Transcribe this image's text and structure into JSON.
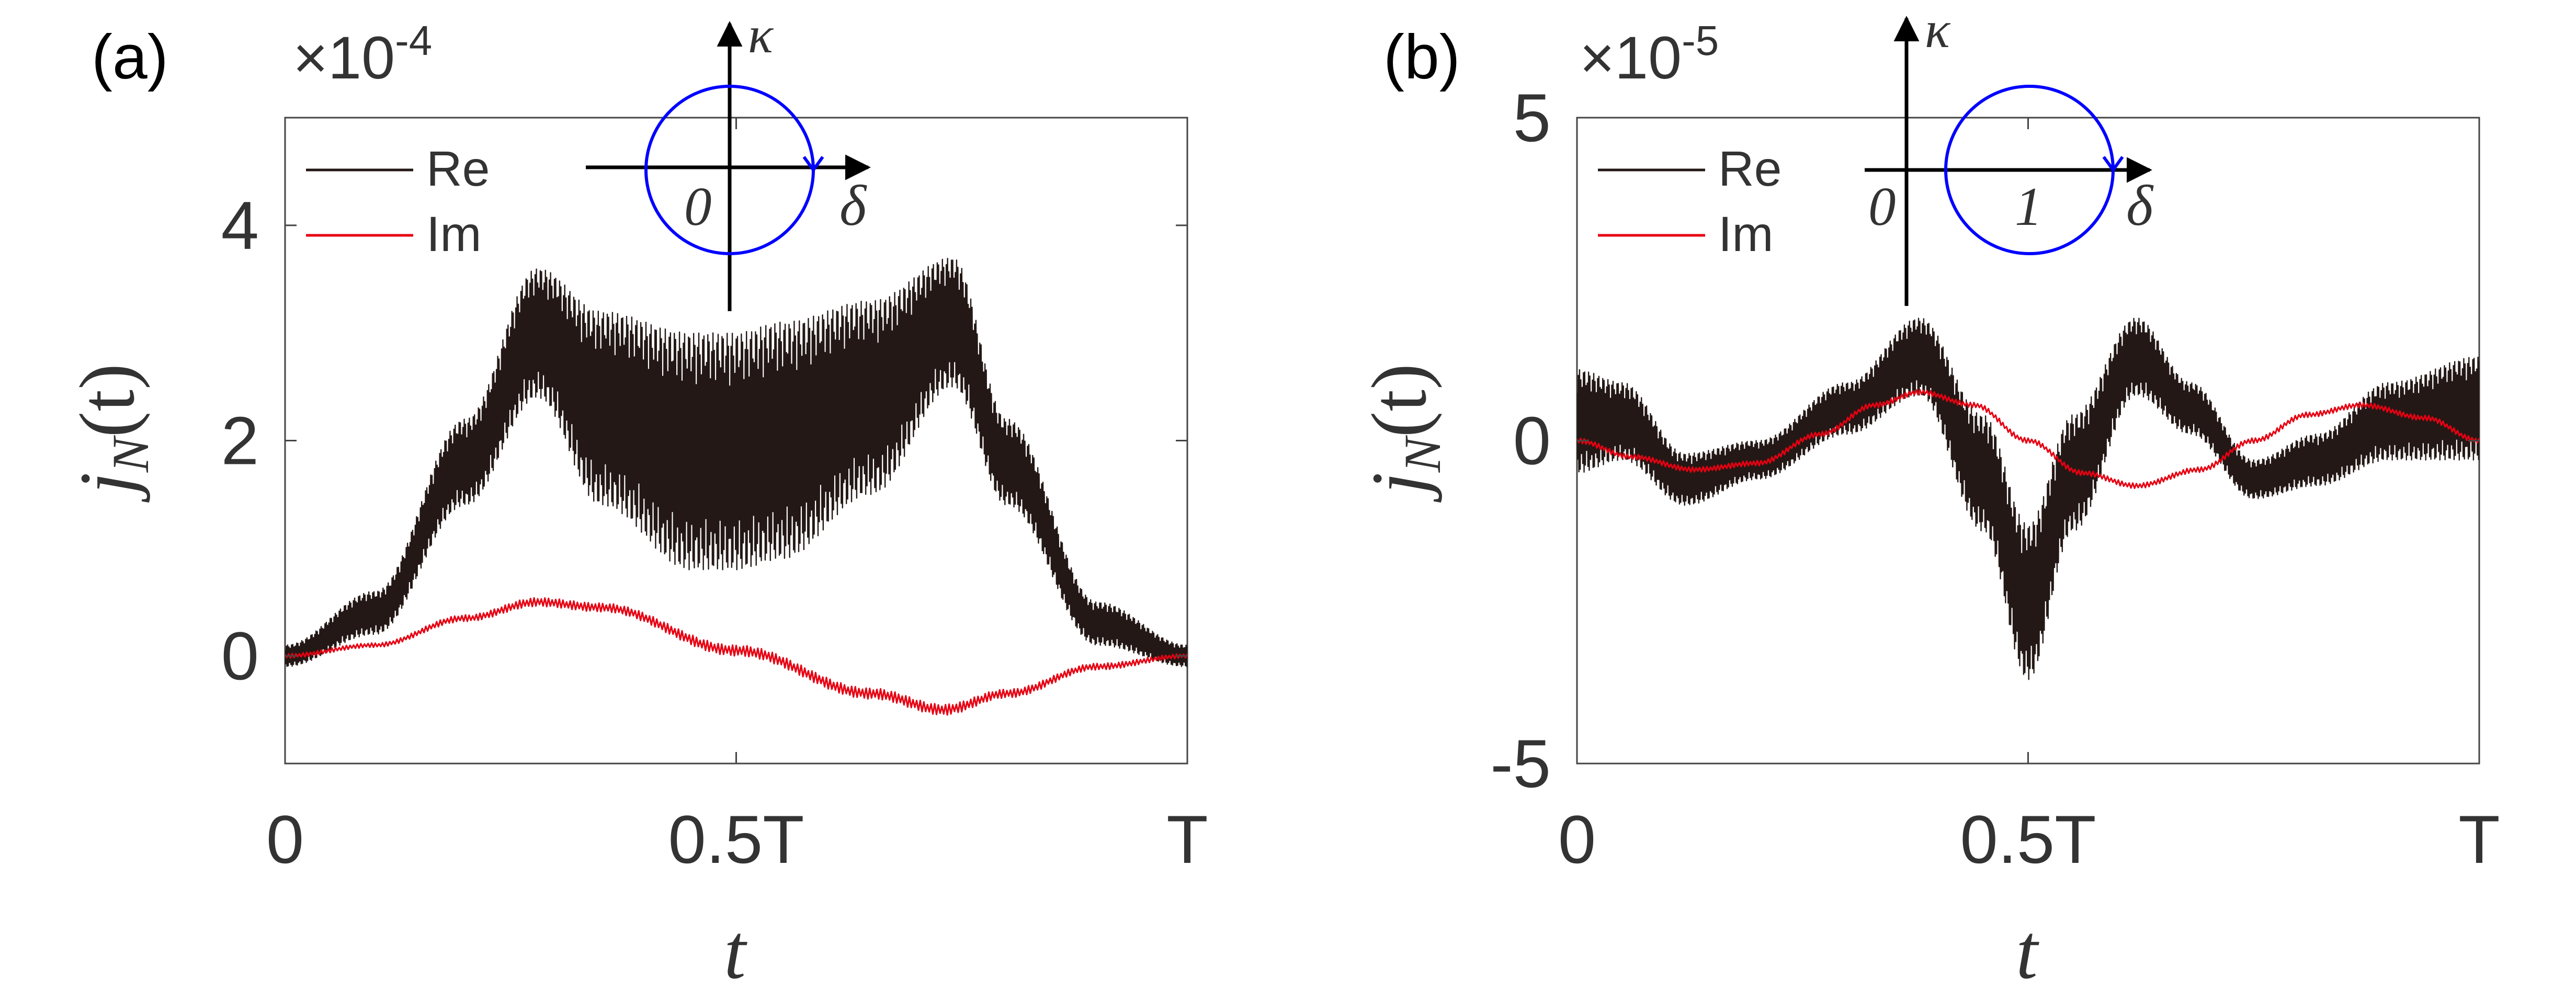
{
  "figure": {
    "panels": [
      {
        "label": "(a)",
        "exponent_prefix": "×10",
        "exponent_power": "-4",
        "xlabel": "t",
        "ylabel_main": "j",
        "ylabel_sub": "N",
        "ylabel_arg": "(t)",
        "inset": {
          "axis_x": "δ",
          "axis_y": "κ",
          "labels": [
            "0"
          ],
          "circle_center": 0,
          "circle_radius": 1
        }
      },
      {
        "label": "(b)",
        "exponent_prefix": "×10",
        "exponent_power": "-5",
        "xlabel": "t",
        "ylabel_main": "j",
        "ylabel_sub": "N",
        "ylabel_arg": "(t)",
        "inset": {
          "axis_x": "δ",
          "axis_y": "κ",
          "labels": [
            "0",
            "1"
          ],
          "circle_center": 1,
          "circle_radius": 1
        }
      }
    ]
  },
  "chart_data": [
    {
      "type": "line",
      "panel": "(a)",
      "title": "",
      "xlabel": "t",
      "ylabel": "j_N(t)",
      "xlim": [
        0,
        1
      ],
      "ylim": [
        -1,
        5
      ],
      "x_ticks": [
        0,
        0.5,
        1
      ],
      "x_tick_labels": [
        "0",
        "0.5T",
        "T"
      ],
      "y_ticks": [
        0,
        2,
        4
      ],
      "y_tick_labels": [
        "0",
        "2",
        "4"
      ],
      "y_scale_note": "×10^-4",
      "legend": {
        "placement": "top-left",
        "entries": [
          "Re",
          "Im"
        ]
      },
      "series": [
        {
          "name": "Re",
          "color": "#231815",
          "style": "oscillating band",
          "x": [
            0,
            0.1,
            0.2,
            0.28,
            0.35,
            0.45,
            0.5,
            0.55,
            0.65,
            0.74,
            0.8,
            0.9,
            1.0
          ],
          "center": [
            0,
            0.4,
            1.8,
            3.0,
            2.3,
            1.9,
            1.9,
            2.0,
            2.4,
            3.1,
            1.8,
            0.3,
            0
          ],
          "amplitude": [
            0.1,
            0.2,
            0.4,
            0.6,
            0.9,
            1.1,
            1.1,
            1.1,
            0.9,
            0.6,
            0.4,
            0.2,
            0.1
          ]
        },
        {
          "name": "Im",
          "color": "#e60012",
          "style": "thin band",
          "x": [
            0,
            0.1,
            0.2,
            0.28,
            0.35,
            0.5,
            0.65,
            0.73,
            0.8,
            0.9,
            1.0
          ],
          "center": [
            0,
            0.1,
            0.35,
            0.5,
            0.45,
            0.05,
            -0.35,
            -0.5,
            -0.35,
            -0.1,
            0
          ],
          "amplitude": [
            0.02,
            0.02,
            0.03,
            0.04,
            0.04,
            0.05,
            0.05,
            0.05,
            0.04,
            0.03,
            0.02
          ]
        }
      ]
    },
    {
      "type": "line",
      "panel": "(b)",
      "title": "",
      "xlabel": "t",
      "ylabel": "j_N(t)",
      "xlim": [
        0,
        1
      ],
      "ylim": [
        -5,
        5
      ],
      "x_ticks": [
        0,
        0.5,
        1
      ],
      "x_tick_labels": [
        "0",
        "0.5T",
        "T"
      ],
      "y_ticks": [
        -5,
        0,
        5
      ],
      "y_tick_labels": [
        "-5",
        "0",
        "5"
      ],
      "y_scale_note": "×10^-5",
      "legend": {
        "placement": "top-left",
        "entries": [
          "Re",
          "Im"
        ]
      },
      "series": [
        {
          "name": "Re",
          "color": "#231815",
          "style": "oscillating band",
          "x": [
            0,
            0.05,
            0.12,
            0.2,
            0.3,
            0.38,
            0.45,
            0.5,
            0.55,
            0.62,
            0.68,
            0.75,
            0.82,
            0.9,
            1.0
          ],
          "center": [
            0.3,
            0.3,
            -0.6,
            -0.3,
            0.5,
            1.3,
            -0.5,
            -2.5,
            -0.5,
            1.3,
            0.5,
            -0.6,
            -0.3,
            0.3,
            0.5
          ],
          "amplitude": [
            0.8,
            0.6,
            0.4,
            0.3,
            0.4,
            0.6,
            0.9,
            1.2,
            0.9,
            0.6,
            0.4,
            0.3,
            0.4,
            0.6,
            0.8
          ]
        },
        {
          "name": "Im",
          "color": "#e60012",
          "style": "thin band",
          "x": [
            0,
            0.06,
            0.13,
            0.2,
            0.27,
            0.33,
            0.38,
            0.44,
            0.5,
            0.56,
            0.62,
            0.69,
            0.75,
            0.81,
            0.87,
            0.94,
            1.0
          ],
          "center": [
            0,
            -0.25,
            -0.45,
            -0.35,
            0.1,
            0.55,
            0.75,
            0.55,
            0,
            -0.5,
            -0.7,
            -0.45,
            0,
            0.4,
            0.55,
            0.35,
            0
          ],
          "amplitude": [
            0.04,
            0.04,
            0.04,
            0.04,
            0.04,
            0.04,
            0.04,
            0.04,
            0.04,
            0.04,
            0.04,
            0.04,
            0.04,
            0.04,
            0.04,
            0.04,
            0.04
          ]
        }
      ]
    }
  ]
}
